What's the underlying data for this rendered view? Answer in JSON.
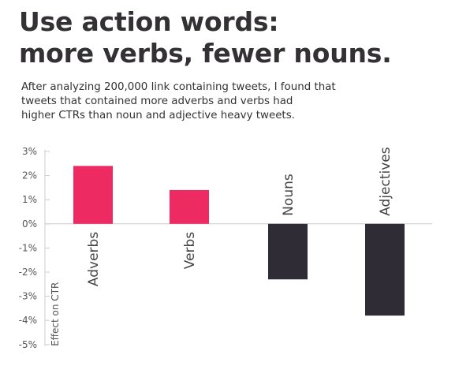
{
  "chart_data": {
    "type": "bar",
    "title": [
      "Use action words:",
      "more verbs, fewer nouns."
    ],
    "subtitle": [
      "After analyzing 200,000 link containing tweets, I found that",
      "tweets that contained more adverbs and verbs had",
      "higher CTRs than noun and adjective heavy tweets."
    ],
    "ylabel": "Effect on CTR",
    "xlabel": "",
    "ylim": [
      -5,
      3
    ],
    "yticks": [
      3,
      2,
      1,
      0,
      -1,
      -2,
      -3,
      -4,
      -5
    ],
    "ytick_labels": [
      "3%",
      "2%",
      "1%",
      "0%",
      "-1%",
      "-2%",
      "-3%",
      "-4%",
      "-5%"
    ],
    "categories": [
      "Adverbs",
      "Verbs",
      "Nouns",
      "Adjectives"
    ],
    "values": [
      2.4,
      1.4,
      -2.3,
      -3.8
    ],
    "colors": {
      "positive": "#ee2a63",
      "negative": "#302c36",
      "axis": "#cccccc",
      "text": "#333134"
    },
    "grid": false,
    "legend": "none"
  }
}
